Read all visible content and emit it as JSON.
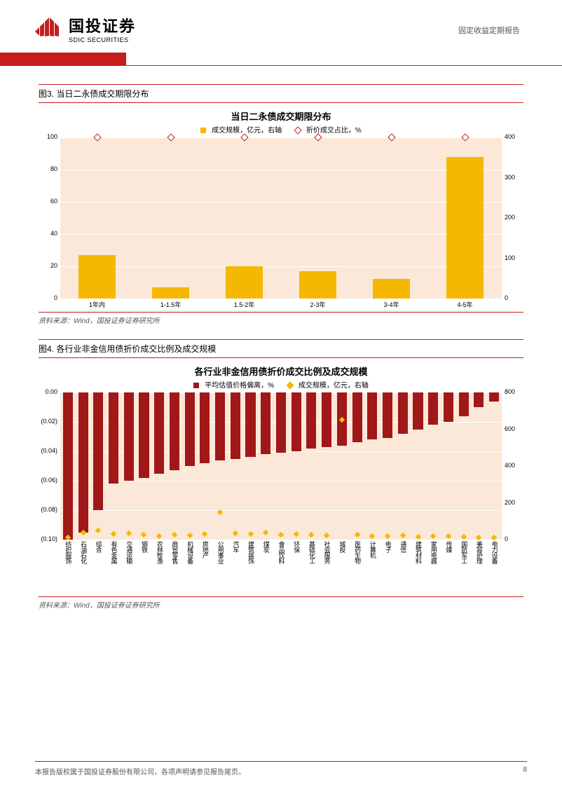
{
  "header": {
    "logo_cn": "国投证券",
    "logo_en": "SDIC SECURITIES",
    "report_type": "固定收益定期报告"
  },
  "chart3": {
    "caption": "图3. 当日二永债成交期限分布",
    "title": "当日二永债成交期限分布",
    "legend_bar": "成交规模，亿元，右轴",
    "legend_marker": "折价成交占比，%",
    "bar_color": "#f5b800",
    "marker_color": "#c41e1e",
    "plot_bg": "#fce8d8",
    "y_left": {
      "min": 0,
      "max": 100,
      "step": 20
    },
    "y_right": {
      "min": 0,
      "max": 400,
      "step": 100
    },
    "categories": [
      "1年内",
      "1-1.5年",
      "1.5-2年",
      "2-3年",
      "3-4年",
      "4-5年"
    ],
    "bar_values": [
      27,
      7,
      20,
      17,
      12,
      88
    ],
    "marker_values": [
      100,
      100,
      100,
      100,
      100,
      100
    ],
    "source": "资料来源：Wind，国投证券证券研究所"
  },
  "chart4": {
    "caption": "图4. 各行业非金信用债折价成交比例及成交规模",
    "title": "各行业非金信用债折价成交比例及成交规模",
    "legend_bar": "平均估值价格偏离，%",
    "legend_marker": "成交规模，亿元，右轴",
    "bar_color": "#a01818",
    "marker_color": "#f5b800",
    "plot_bg": "#fce8d8",
    "y_left": {
      "min": -0.1,
      "max": 0.0,
      "step": 0.02,
      "labels": [
        "0.00",
        "(0.02)",
        "(0.04)",
        "(0.06)",
        "(0.08)",
        "(0.10)"
      ]
    },
    "y_right": {
      "min": 0,
      "max": 800,
      "step": 200
    },
    "categories": [
      "纺织服饰",
      "石油石化",
      "综合",
      "有色金属",
      "交通运输",
      "钢铁",
      "农林牧渔",
      "商贸零售",
      "机械设备",
      "房地产",
      "公用事业",
      "汽车",
      "建筑装饰",
      "煤炭",
      "食品饮料",
      "环保",
      "基础化工",
      "社会服务",
      "城投",
      "医药生物",
      "计算机",
      "电子",
      "通信",
      "建筑材料",
      "家用电器",
      "传媒",
      "国防军工",
      "美容护理",
      "电力设备"
    ],
    "bar_values": [
      -0.1,
      -0.095,
      -0.08,
      -0.062,
      -0.06,
      -0.058,
      -0.055,
      -0.053,
      -0.05,
      -0.048,
      -0.046,
      -0.045,
      -0.044,
      -0.042,
      -0.041,
      -0.04,
      -0.038,
      -0.037,
      -0.036,
      -0.034,
      -0.032,
      -0.031,
      -0.028,
      -0.025,
      -0.022,
      -0.02,
      -0.016,
      -0.01,
      -0.006
    ],
    "marker_values": [
      10,
      40,
      50,
      30,
      35,
      28,
      20,
      25,
      22,
      30,
      150,
      35,
      30,
      40,
      25,
      30,
      28,
      22,
      650,
      25,
      20,
      18,
      22,
      15,
      20,
      18,
      15,
      12,
      10
    ],
    "source": "资料来源：Wind，国投证券证券研究所"
  },
  "footer": {
    "text": "本报告版权属于国投证券股份有限公司，各项声明请参见报告尾页。",
    "page": "8"
  }
}
